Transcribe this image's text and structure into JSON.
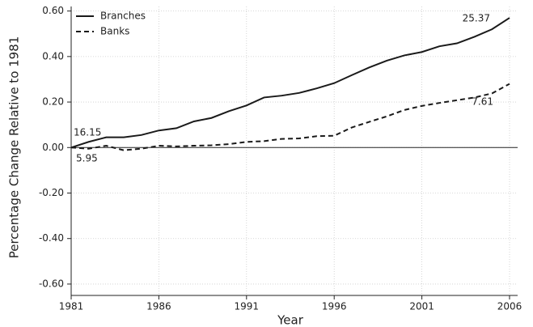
{
  "chart_data": {
    "type": "line",
    "x_label": "Year",
    "y_label": "Percentage Change Relative to 1981",
    "x": [
      1981,
      1982,
      1983,
      1984,
      1985,
      1986,
      1987,
      1988,
      1989,
      1990,
      1991,
      1992,
      1993,
      1994,
      1995,
      1996,
      1997,
      1998,
      1999,
      2000,
      2001,
      2002,
      2003,
      2004,
      2005,
      2006
    ],
    "series": [
      {
        "name": "Branches",
        "color": "#1a1a1a",
        "dash": "solid",
        "values": [
          0.0,
          0.025,
          0.045,
          0.045,
          0.055,
          0.075,
          0.085,
          0.115,
          0.13,
          0.16,
          0.185,
          0.22,
          0.228,
          0.24,
          0.26,
          0.283,
          0.318,
          0.352,
          0.382,
          0.405,
          0.42,
          0.445,
          0.458,
          0.487,
          0.52,
          0.57
        ]
      },
      {
        "name": "Banks",
        "color": "#1a1a1a",
        "dash": "dashed",
        "values": [
          0.0,
          -0.005,
          0.008,
          -0.012,
          -0.005,
          0.008,
          0.005,
          0.008,
          0.01,
          0.015,
          0.025,
          0.028,
          0.038,
          0.04,
          0.05,
          0.052,
          0.088,
          0.113,
          0.137,
          0.165,
          0.183,
          0.196,
          0.208,
          0.22,
          0.238,
          0.28
        ]
      }
    ],
    "annotations": [
      "16.15",
      "5.95",
      "25.37",
      "7.61"
    ],
    "xlim": [
      1981,
      2006
    ],
    "xticks": [
      1981,
      1986,
      1991,
      1996,
      2001,
      2006
    ],
    "ylim": [
      -0.65,
      0.62
    ],
    "yticks": [
      {
        "value": 0.6,
        "label": "0.60"
      },
      {
        "value": 0.4,
        "label": "0.40"
      },
      {
        "value": 0.2,
        "label": "0.20"
      },
      {
        "value": 0,
        "label": "0.00"
      },
      {
        "value": -0.2,
        "label": "-0.20"
      },
      {
        "value": -0.4,
        "label": "-0.40"
      },
      {
        "value": -0.6,
        "label": "-0.60"
      }
    ],
    "grid": true,
    "legend": "top-left"
  }
}
